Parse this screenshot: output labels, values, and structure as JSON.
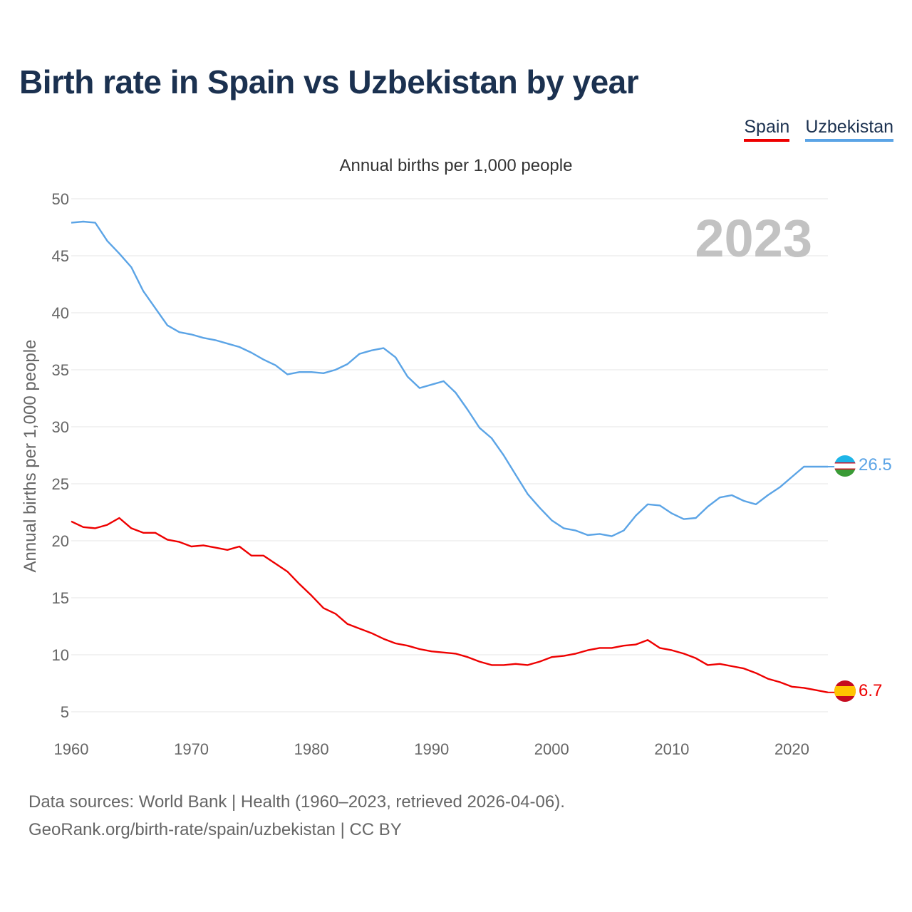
{
  "title": "Birth rate in Spain vs Uzbekistan by year",
  "legend": [
    {
      "label": "Spain",
      "color": "#ee0000"
    },
    {
      "label": "Uzbekistan",
      "color": "#5ba4e6"
    }
  ],
  "source": {
    "line1": "Data sources: World Bank | Health (1960–2023, retrieved 2026-04-06).",
    "line2": "GeoRank.org/birth-rate/spain/uzbekistan | CC BY"
  },
  "chart_data": {
    "type": "line",
    "title": "Birth rate in Spain vs Uzbekistan by year",
    "subtitle": "Annual births per 1,000 people",
    "xlabel": "",
    "ylabel": "Annual births per 1,000 people",
    "year_label": "2023",
    "xlim": [
      1960,
      2023
    ],
    "ylim": [
      5,
      50
    ],
    "yticks": [
      5,
      10,
      15,
      20,
      25,
      30,
      35,
      40,
      45,
      50
    ],
    "xticks": [
      1960,
      1970,
      1980,
      1990,
      2000,
      2010,
      2020
    ],
    "grid": true,
    "x": [
      1960,
      1961,
      1962,
      1963,
      1964,
      1965,
      1966,
      1967,
      1968,
      1969,
      1970,
      1971,
      1972,
      1973,
      1974,
      1975,
      1976,
      1977,
      1978,
      1979,
      1980,
      1981,
      1982,
      1983,
      1984,
      1985,
      1986,
      1987,
      1988,
      1989,
      1990,
      1991,
      1992,
      1993,
      1994,
      1995,
      1996,
      1997,
      1998,
      1999,
      2000,
      2001,
      2002,
      2003,
      2004,
      2005,
      2006,
      2007,
      2008,
      2009,
      2010,
      2011,
      2012,
      2013,
      2014,
      2015,
      2016,
      2017,
      2018,
      2019,
      2020,
      2021,
      2022,
      2023
    ],
    "series": [
      {
        "name": "Spain",
        "color": "#ee0000",
        "end_label": "6.7",
        "flag": "spain-flag-icon",
        "values": [
          21.7,
          21.2,
          21.1,
          21.4,
          22.0,
          21.1,
          20.7,
          20.7,
          20.1,
          19.9,
          19.5,
          19.6,
          19.4,
          19.2,
          19.5,
          18.7,
          18.7,
          18.0,
          17.3,
          16.2,
          15.2,
          14.1,
          13.6,
          12.7,
          12.3,
          11.9,
          11.4,
          11.0,
          10.8,
          10.5,
          10.3,
          10.2,
          10.1,
          9.8,
          9.4,
          9.1,
          9.1,
          9.2,
          9.1,
          9.4,
          9.8,
          9.9,
          10.1,
          10.4,
          10.6,
          10.6,
          10.8,
          10.9,
          11.3,
          10.6,
          10.4,
          10.1,
          9.7,
          9.1,
          9.2,
          9.0,
          8.8,
          8.4,
          7.9,
          7.6,
          7.2,
          7.1,
          6.9,
          6.7
        ]
      },
      {
        "name": "Uzbekistan",
        "color": "#5ba4e6",
        "end_label": "26.5",
        "flag": "uzbekistan-flag-icon",
        "values": [
          47.9,
          48.0,
          47.9,
          46.3,
          45.2,
          44.0,
          41.9,
          40.4,
          38.9,
          38.3,
          38.1,
          37.8,
          37.6,
          37.3,
          37.0,
          36.5,
          35.9,
          35.4,
          34.6,
          34.8,
          34.8,
          34.7,
          35.0,
          35.5,
          36.4,
          36.7,
          36.9,
          36.1,
          34.4,
          33.4,
          33.7,
          34.0,
          33.0,
          31.5,
          29.9,
          29.0,
          27.5,
          25.8,
          24.1,
          22.9,
          21.8,
          21.1,
          20.9,
          20.5,
          20.6,
          20.4,
          20.9,
          22.2,
          23.2,
          23.1,
          22.4,
          21.9,
          22.0,
          23.0,
          23.8,
          24.0,
          23.5,
          23.2,
          24.0,
          24.7,
          25.6,
          26.5,
          26.5,
          26.5
        ]
      }
    ]
  }
}
